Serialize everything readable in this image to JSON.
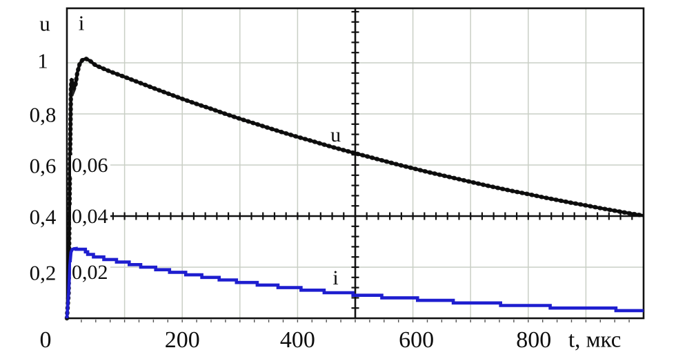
{
  "page": {
    "background": "#ffffff"
  },
  "chart_data": {
    "type": "line",
    "title": "",
    "xlabel": "t, мкс",
    "x_range_us": [
      0,
      1000
    ],
    "grid": {
      "x_step_us": 100,
      "u_step": 0.2,
      "color": "#c9cfc5",
      "on": true
    },
    "axes_cross": {
      "t_us": 500,
      "u": 0.4,
      "x_minor_tick_us": 20,
      "u_minor_tick": 0.04
    },
    "x_ticks": [
      {
        "t_us": 0,
        "label": "0"
      },
      {
        "t_us": 200,
        "label": "200"
      },
      {
        "t_us": 400,
        "label": "400"
      },
      {
        "t_us": 600,
        "label": "600"
      },
      {
        "t_us": 800,
        "label": "800"
      }
    ],
    "left_axis": {
      "title": "u",
      "ticks": [
        {
          "u": 1.0,
          "label": "1"
        },
        {
          "u": 0.8,
          "label": "0,8"
        },
        {
          "u": 0.6,
          "label": "0,6"
        },
        {
          "u": 0.4,
          "label": "0,4"
        },
        {
          "u": 0.2,
          "label": "0,2"
        }
      ]
    },
    "inner_axis": {
      "title": "i",
      "ticks": [
        {
          "u": 0.6,
          "label": "0,06"
        },
        {
          "u": 0.4,
          "label": "0,04"
        },
        {
          "u": 0.2,
          "label": "0,02"
        }
      ]
    },
    "curve_labels": [
      {
        "text": "u",
        "t_us": 466,
        "u": 0.715
      },
      {
        "text": "i",
        "t_us": 466,
        "u": 0.157
      }
    ],
    "colors": {
      "u_curve": "#0c0c0c",
      "i_curve": "#1e1ecf",
      "axis": "#111111",
      "grid": "#c9cfc5",
      "text": "#0d0d0d"
    },
    "series": [
      {
        "name": "u",
        "label": "u",
        "color_key": "u_curve",
        "u_per_unit": 1,
        "quantize": 0,
        "style": "beaded",
        "points": [
          [
            0,
            0
          ],
          [
            3,
            0.1
          ],
          [
            5,
            0.55
          ],
          [
            7,
            0.9
          ],
          [
            8,
            0.935
          ],
          [
            10,
            0.925
          ],
          [
            12,
            0.898
          ],
          [
            15,
            0.915
          ],
          [
            18,
            0.96
          ],
          [
            22,
            0.995
          ],
          [
            27,
            1.012
          ],
          [
            33,
            1.016
          ],
          [
            40,
            1.008
          ],
          [
            45,
            0.999
          ],
          [
            50,
            0.99
          ],
          [
            75,
            0.966
          ],
          [
            100,
            0.945
          ],
          [
            125,
            0.923
          ],
          [
            150,
            0.901
          ],
          [
            175,
            0.88
          ],
          [
            200,
            0.859
          ],
          [
            225,
            0.839
          ],
          [
            250,
            0.82
          ],
          [
            275,
            0.8
          ],
          [
            300,
            0.781
          ],
          [
            325,
            0.763
          ],
          [
            350,
            0.745
          ],
          [
            375,
            0.727
          ],
          [
            400,
            0.71
          ],
          [
            425,
            0.694
          ],
          [
            450,
            0.677
          ],
          [
            475,
            0.661
          ],
          [
            500,
            0.646
          ],
          [
            525,
            0.631
          ],
          [
            550,
            0.616
          ],
          [
            575,
            0.601
          ],
          [
            600,
            0.587
          ],
          [
            625,
            0.573
          ],
          [
            650,
            0.56
          ],
          [
            675,
            0.547
          ],
          [
            700,
            0.534
          ],
          [
            725,
            0.521
          ],
          [
            750,
            0.509
          ],
          [
            775,
            0.497
          ],
          [
            800,
            0.486
          ],
          [
            825,
            0.474
          ],
          [
            850,
            0.463
          ],
          [
            875,
            0.452
          ],
          [
            900,
            0.442
          ],
          [
            925,
            0.431
          ],
          [
            950,
            0.421
          ],
          [
            975,
            0.411
          ],
          [
            1000,
            0.402
          ]
        ]
      },
      {
        "name": "i",
        "label": "i",
        "color_key": "i_curve",
        "u_per_unit": 10,
        "quantize": 0.001,
        "style": "staircase",
        "points": [
          [
            0,
            0
          ],
          [
            3,
            0.01
          ],
          [
            5,
            0.0205
          ],
          [
            7,
            0.0258
          ],
          [
            9,
            0.0269
          ],
          [
            12,
            0.0272
          ],
          [
            16,
            0.0273
          ],
          [
            20,
            0.0273
          ],
          [
            25,
            0.0272
          ],
          [
            30,
            0.027
          ],
          [
            40,
            0.0252
          ],
          [
            50,
            0.0247
          ],
          [
            60,
            0.0242
          ],
          [
            75,
            0.0234
          ],
          [
            100,
            0.0223
          ],
          [
            125,
            0.0211
          ],
          [
            150,
            0.0201
          ],
          [
            175,
            0.0191
          ],
          [
            200,
            0.0182
          ],
          [
            225,
            0.0173
          ],
          [
            250,
            0.0164
          ],
          [
            275,
            0.0156
          ],
          [
            300,
            0.0148
          ],
          [
            325,
            0.0141
          ],
          [
            350,
            0.0134
          ],
          [
            375,
            0.0127
          ],
          [
            400,
            0.0121
          ],
          [
            425,
            0.0115
          ],
          [
            450,
            0.0109
          ],
          [
            475,
            0.0104
          ],
          [
            500,
            0.0099
          ],
          [
            525,
            0.0094
          ],
          [
            550,
            0.0089
          ],
          [
            575,
            0.0085
          ],
          [
            600,
            0.0081
          ],
          [
            625,
            0.0077
          ],
          [
            650,
            0.0073
          ],
          [
            675,
            0.0069
          ],
          [
            700,
            0.0066
          ],
          [
            725,
            0.0063
          ],
          [
            750,
            0.006
          ],
          [
            775,
            0.0057
          ],
          [
            800,
            0.0054
          ],
          [
            825,
            0.0051
          ],
          [
            850,
            0.0049
          ],
          [
            875,
            0.0046
          ],
          [
            900,
            0.0044
          ],
          [
            925,
            0.0042
          ],
          [
            950,
            0.004
          ],
          [
            975,
            0.0038
          ],
          [
            1000,
            0.0036
          ]
        ]
      }
    ]
  }
}
